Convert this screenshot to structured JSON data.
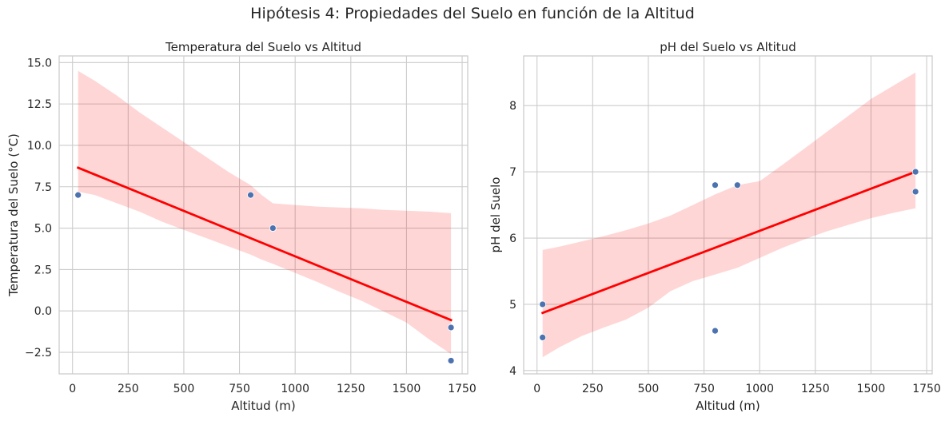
{
  "figure": {
    "suptitle": "Hipótesis 4: Propiedades del Suelo en función de la Altitud"
  },
  "chart_data": [
    {
      "type": "scatter",
      "title": "Temperatura del Suelo vs Altitud",
      "xlabel": "Altitud (m)",
      "ylabel": "Temperatura del Suelo (°C)",
      "xlim": [
        -60,
        1775
      ],
      "ylim": [
        -3.8,
        15.4
      ],
      "xticks": [
        0,
        250,
        500,
        750,
        1000,
        1250,
        1500,
        1750
      ],
      "yticks": [
        -2.5,
        0.0,
        2.5,
        5.0,
        7.5,
        10.0,
        12.5,
        15.0
      ],
      "ytick_labels": [
        "−2.5",
        "0.0",
        "2.5",
        "5.0",
        "7.5",
        "10.0",
        "12.5",
        "15.0"
      ],
      "grid": true,
      "points": {
        "x": [
          25,
          800,
          900,
          1700,
          1700
        ],
        "y": [
          7.0,
          7.0,
          5.0,
          -1.0,
          -3.0
        ],
        "color": "#4c72b0"
      },
      "regression": {
        "x": [
          25,
          1700
        ],
        "y": [
          8.65,
          -0.55
        ],
        "color": "#ff0000"
      },
      "confidence_band": {
        "color": "#ff0000",
        "opacity": 0.16,
        "x": [
          25,
          100,
          200,
          300,
          400,
          500,
          600,
          700,
          800,
          850,
          900,
          1000,
          1100,
          1200,
          1300,
          1400,
          1500,
          1600,
          1700
        ],
        "upper": [
          14.5,
          13.9,
          13.0,
          12.0,
          11.1,
          10.2,
          9.3,
          8.4,
          7.6,
          7.0,
          6.5,
          6.4,
          6.3,
          6.25,
          6.2,
          6.1,
          6.05,
          6.0,
          5.9
        ],
        "lower": [
          7.2,
          7.0,
          6.5,
          6.0,
          5.4,
          4.9,
          4.4,
          3.9,
          3.4,
          3.1,
          2.85,
          2.3,
          1.75,
          1.15,
          0.6,
          -0.05,
          -0.7,
          -1.7,
          -2.6
        ]
      }
    },
    {
      "type": "scatter",
      "title": "pH del Suelo vs Altitud",
      "xlabel": "Altitud (m)",
      "ylabel": "pH del Suelo",
      "xlim": [
        -60,
        1775
      ],
      "ylim": [
        3.95,
        8.75
      ],
      "xticks": [
        0,
        250,
        500,
        750,
        1000,
        1250,
        1500,
        1750
      ],
      "yticks": [
        4,
        5,
        6,
        7,
        8
      ],
      "ytick_labels": [
        "4",
        "5",
        "6",
        "7",
        "8"
      ],
      "grid": true,
      "points": {
        "x": [
          25,
          25,
          800,
          800,
          900,
          1700,
          1700
        ],
        "y": [
          5.0,
          4.5,
          6.8,
          4.6,
          6.8,
          7.0,
          6.7
        ],
        "color": "#4c72b0"
      },
      "regression": {
        "x": [
          25,
          1700
        ],
        "y": [
          4.87,
          7.0
        ],
        "color": "#ff0000"
      },
      "confidence_band": {
        "color": "#ff0000",
        "opacity": 0.16,
        "x": [
          25,
          100,
          200,
          300,
          400,
          500,
          600,
          700,
          800,
          900,
          1000,
          1100,
          1200,
          1300,
          1400,
          1500,
          1600,
          1700
        ],
        "upper": [
          5.82,
          5.87,
          5.95,
          6.03,
          6.12,
          6.22,
          6.34,
          6.5,
          6.66,
          6.8,
          6.86,
          7.1,
          7.35,
          7.6,
          7.85,
          8.1,
          8.3,
          8.5
        ],
        "lower": [
          4.2,
          4.35,
          4.52,
          4.65,
          4.77,
          4.95,
          5.2,
          5.35,
          5.45,
          5.55,
          5.7,
          5.85,
          5.98,
          6.1,
          6.2,
          6.3,
          6.38,
          6.45
        ]
      }
    }
  ]
}
